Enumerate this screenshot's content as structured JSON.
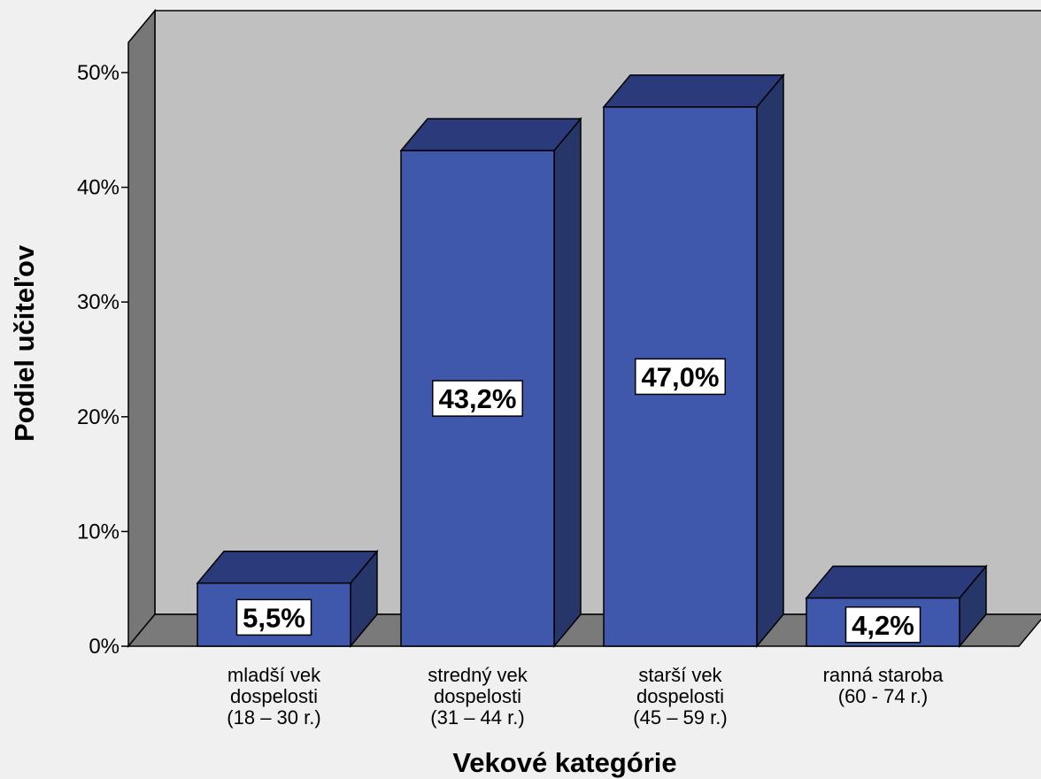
{
  "chart_data": {
    "type": "bar",
    "categories": [
      [
        "mladší vek",
        "dospelosti",
        "(18 – 30 r.)"
      ],
      [
        "stredný vek",
        "dospelosti",
        "(31 – 44 r.)"
      ],
      [
        "starší vek",
        "dospelosti",
        "(45 – 59 r.)"
      ],
      [
        "ranná staroba",
        "(60 - 74 r.)"
      ]
    ],
    "values": [
      5.5,
      43.2,
      47.0,
      4.2
    ],
    "data_labels": [
      "5,5%",
      "43,2%",
      "47,0%",
      "4,2%"
    ],
    "xlabel": "Vekové kategórie",
    "ylabel": "Podiel učiteľov",
    "ylim": [
      0,
      50
    ],
    "yticks": [
      0,
      10,
      20,
      30,
      40,
      50
    ],
    "ytick_labels": [
      "0%",
      "10%",
      "20%",
      "30%",
      "40%",
      "50%"
    ],
    "grid": false,
    "legend": "none",
    "style": "3d",
    "colors": {
      "bar_front": "#3f58ab",
      "bar_top": "#2a3a7a",
      "bar_side": "#273668",
      "back_wall": "#c0c0c0",
      "left_wall": "#777777",
      "floor": "#7a7a7a",
      "background": "#f0f0f0"
    }
  }
}
